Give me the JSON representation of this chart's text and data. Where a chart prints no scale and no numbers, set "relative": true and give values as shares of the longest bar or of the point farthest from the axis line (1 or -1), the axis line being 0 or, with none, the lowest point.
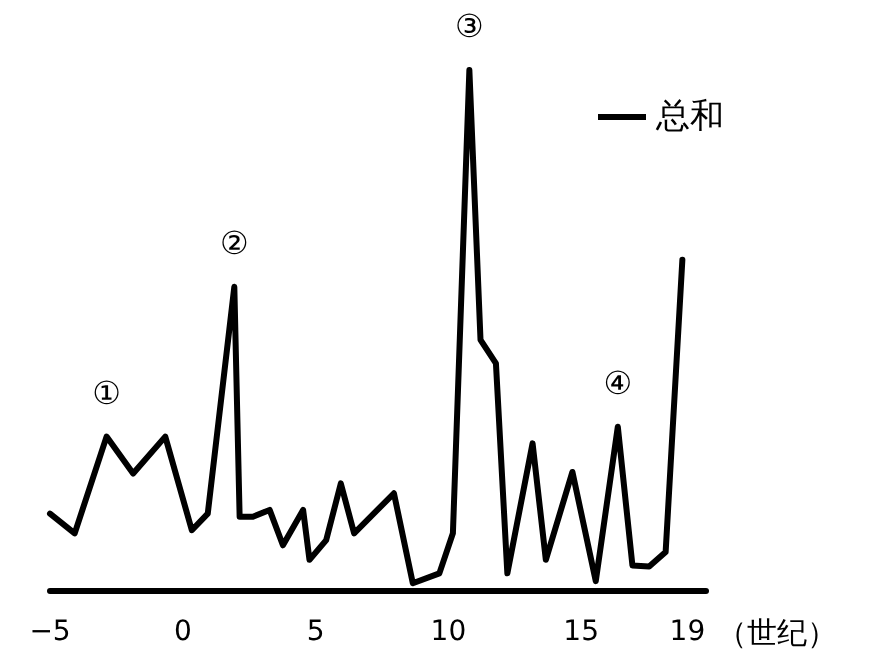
{
  "chart_data": {
    "type": "line",
    "relative": true,
    "xlabel": "（世纪）",
    "xlim": [
      -5,
      19.7
    ],
    "xticks": [
      -5,
      0,
      5,
      10,
      15,
      19
    ],
    "series": [
      {
        "name": "总和",
        "color": "#000000",
        "x": [
          -5.0,
          -4.07,
          -2.87,
          -1.87,
          -0.66,
          0.34,
          0.94,
          1.94,
          2.14,
          2.64,
          3.27,
          3.77,
          4.53,
          4.77,
          5.4,
          5.95,
          6.45,
          7.95,
          8.66,
          9.66,
          10.17,
          10.79,
          11.21,
          11.79,
          12.22,
          13.17,
          13.67,
          14.67,
          15.55,
          16.38,
          16.93,
          17.56,
          18.18,
          18.81
        ],
        "values": [
          0.147,
          0.109,
          0.295,
          0.224,
          0.295,
          0.115,
          0.147,
          0.583,
          0.141,
          0.141,
          0.154,
          0.086,
          0.154,
          0.058,
          0.096,
          0.205,
          0.109,
          0.186,
          0.013,
          0.032,
          0.109,
          1.0,
          0.481,
          0.436,
          0.032,
          0.282,
          0.058,
          0.227,
          0.017,
          0.314,
          0.047,
          0.045,
          0.073,
          0.635
        ]
      }
    ],
    "annotations": [
      {
        "text": "①",
        "x": -2.87,
        "y": 0.295
      },
      {
        "text": "②",
        "x": 1.94,
        "y": 0.583
      },
      {
        "text": "③",
        "x": 10.79,
        "y": 1.0
      },
      {
        "text": "④",
        "x": 16.38,
        "y": 0.314
      }
    ],
    "legend": "top right",
    "grid": false,
    "marker": "none",
    "line_style": "solid"
  }
}
